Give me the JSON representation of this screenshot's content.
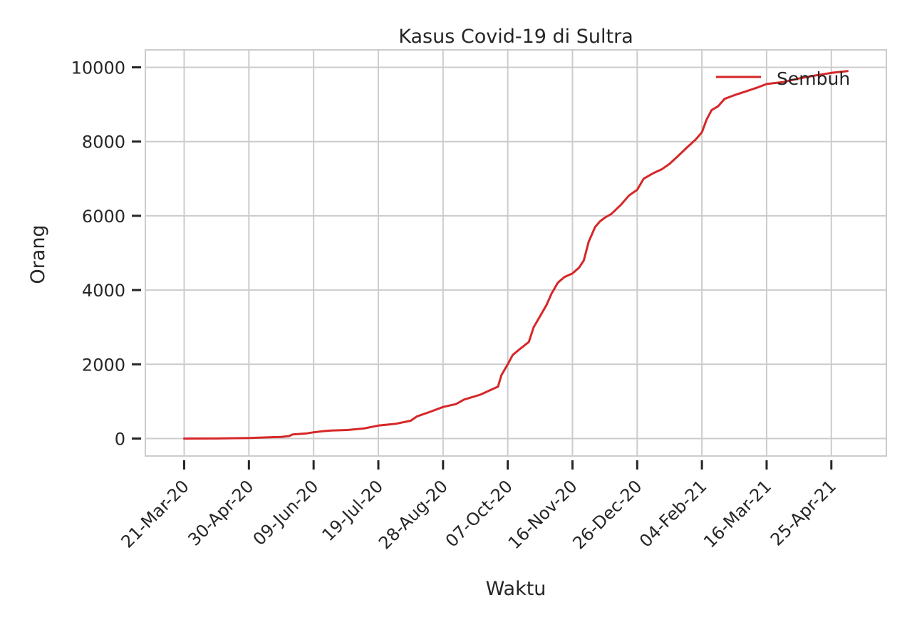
{
  "chart_data": {
    "type": "line",
    "title": "Kasus Covid-19 di Sultra",
    "xlabel": "Waktu",
    "ylabel": "Orang",
    "x_tick_labels": [
      "21-Mar-20",
      "30-Apr-20",
      "09-Jun-20",
      "19-Jul-20",
      "28-Aug-20",
      "07-Oct-20",
      "16-Nov-20",
      "26-Dec-20",
      "04-Feb-21",
      "16-Mar-21",
      "25-Apr-21"
    ],
    "y_tick_labels": [
      "0",
      "2000",
      "4000",
      "6000",
      "8000",
      "10000"
    ],
    "xlim": [
      "2020-02-26",
      "2021-05-29"
    ],
    "ylim": [
      -470,
      10470
    ],
    "grid": true,
    "legend_position": "upper right",
    "series": [
      {
        "name": "Sembuh",
        "color": "#d62728",
        "points": [
          [
            "2020-03-21",
            0
          ],
          [
            "2020-04-10",
            2
          ],
          [
            "2020-04-30",
            15
          ],
          [
            "2020-05-20",
            45
          ],
          [
            "2020-05-25",
            70
          ],
          [
            "2020-05-27",
            110
          ],
          [
            "2020-06-05",
            140
          ],
          [
            "2020-06-09",
            170
          ],
          [
            "2020-06-15",
            200
          ],
          [
            "2020-06-20",
            215
          ],
          [
            "2020-06-30",
            230
          ],
          [
            "2020-07-10",
            270
          ],
          [
            "2020-07-19",
            350
          ],
          [
            "2020-07-30",
            400
          ],
          [
            "2020-08-08",
            480
          ],
          [
            "2020-08-12",
            600
          ],
          [
            "2020-08-20",
            720
          ],
          [
            "2020-08-28",
            850
          ],
          [
            "2020-09-05",
            930
          ],
          [
            "2020-09-10",
            1050
          ],
          [
            "2020-09-20",
            1180
          ],
          [
            "2020-09-27",
            1320
          ],
          [
            "2020-10-01",
            1400
          ],
          [
            "2020-10-03",
            1700
          ],
          [
            "2020-10-07",
            2000
          ],
          [
            "2020-10-10",
            2250
          ],
          [
            "2020-10-15",
            2430
          ],
          [
            "2020-10-20",
            2600
          ],
          [
            "2020-10-23",
            3000
          ],
          [
            "2020-10-27",
            3300
          ],
          [
            "2020-10-31",
            3600
          ],
          [
            "2020-11-03",
            3900
          ],
          [
            "2020-11-07",
            4200
          ],
          [
            "2020-11-11",
            4350
          ],
          [
            "2020-11-16",
            4450
          ],
          [
            "2020-11-20",
            4600
          ],
          [
            "2020-11-23",
            4800
          ],
          [
            "2020-11-26",
            5300
          ],
          [
            "2020-11-30",
            5700
          ],
          [
            "2020-12-03",
            5850
          ],
          [
            "2020-12-06",
            5950
          ],
          [
            "2020-12-10",
            6050
          ],
          [
            "2020-12-16",
            6300
          ],
          [
            "2020-12-21",
            6550
          ],
          [
            "2020-12-26",
            6700
          ],
          [
            "2020-12-30",
            7000
          ],
          [
            "2021-01-05",
            7150
          ],
          [
            "2021-01-10",
            7250
          ],
          [
            "2021-01-15",
            7400
          ],
          [
            "2021-01-20",
            7600
          ],
          [
            "2021-01-26",
            7850
          ],
          [
            "2021-01-31",
            8050
          ],
          [
            "2021-02-04",
            8250
          ],
          [
            "2021-02-07",
            8600
          ],
          [
            "2021-02-10",
            8850
          ],
          [
            "2021-02-14",
            8950
          ],
          [
            "2021-02-18",
            9150
          ],
          [
            "2021-02-24",
            9250
          ],
          [
            "2021-03-03",
            9350
          ],
          [
            "2021-03-10",
            9450
          ],
          [
            "2021-03-16",
            9550
          ],
          [
            "2021-03-26",
            9600
          ],
          [
            "2021-04-05",
            9700
          ],
          [
            "2021-04-15",
            9780
          ],
          [
            "2021-04-25",
            9850
          ],
          [
            "2021-05-05",
            9900
          ]
        ]
      }
    ]
  }
}
